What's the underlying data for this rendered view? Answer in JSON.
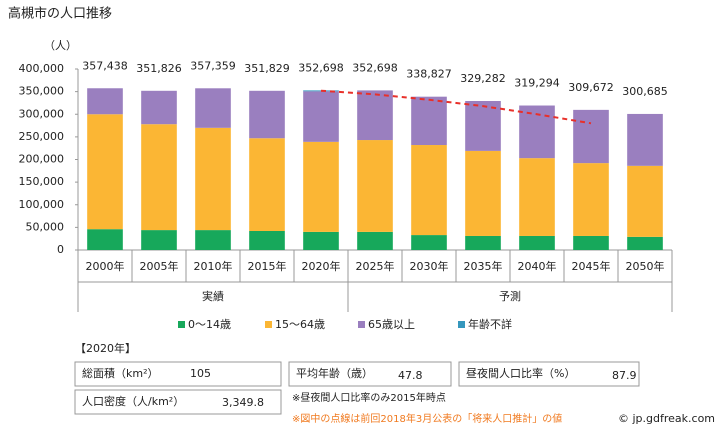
{
  "chart_data": {
    "type": "stacked-bar",
    "title": "高槻市の人口推移",
    "y_unit": "（人）",
    "categories": [
      "2000年",
      "2005年",
      "2010年",
      "2015年",
      "2020年",
      "2025年",
      "2030年",
      "2035年",
      "2040年",
      "2045年",
      "2050年"
    ],
    "groups": [
      {
        "label": "実績",
        "from": 0,
        "to": 4
      },
      {
        "label": "予測",
        "from": 5,
        "to": 10
      }
    ],
    "series": [
      {
        "name": "0～14歳",
        "color": "#17a85b",
        "values": [
          46000,
          44000,
          44000,
          42000,
          40000,
          40000,
          33000,
          31000,
          31000,
          31000,
          29000
        ]
      },
      {
        "name": "15～64歳",
        "color": "#fbb634",
        "values": [
          254000,
          234000,
          226000,
          205000,
          199000,
          203000,
          199000,
          188000,
          172000,
          161000,
          157000
        ]
      },
      {
        "name": "65歳以上",
        "color": "#9a7fbf",
        "values": [
          57438,
          73826,
          87359,
          104829,
          111698,
          109698,
          106827,
          110282,
          116294,
          117672,
          114685
        ]
      },
      {
        "name": "年齢不詳",
        "color": "#3597bd",
        "values": [
          null,
          null,
          null,
          null,
          2000,
          null,
          null,
          null,
          null,
          null,
          null
        ]
      }
    ],
    "totals": [
      357438,
      351826,
      357359,
      351829,
      352698,
      352698,
      338827,
      329282,
      319294,
      309672,
      300685
    ],
    "totals_value_labels": [
      "357,438",
      "351,826",
      "357,359",
      "351,829",
      "352,698",
      "352,698",
      "338,827",
      "329,282",
      "319,294",
      "309,672",
      "300,685"
    ],
    "previous_projection": {
      "color": "#e8302a",
      "values": [
        null,
        null,
        null,
        null,
        352000,
        344000,
        332000,
        318000,
        300000,
        280000,
        null
      ]
    },
    "ylim": [
      0,
      400000
    ],
    "yticks": [
      {
        "value": 0,
        "label": "0"
      },
      {
        "value": 50000,
        "label": "50,000"
      },
      {
        "value": 100000,
        "label": "100,000"
      },
      {
        "value": 150000,
        "label": "150,000"
      },
      {
        "value": 200000,
        "label": "200,000"
      },
      {
        "value": 250000,
        "label": "250,000"
      },
      {
        "value": 300000,
        "label": "300,000"
      },
      {
        "value": 350000,
        "label": "350,000"
      },
      {
        "value": 400000,
        "label": "400,000"
      }
    ]
  },
  "info": {
    "year": "【2020年】",
    "items": [
      {
        "label": "総面積（km²）",
        "value": 105
      },
      {
        "label": "平均年齢（歳）",
        "value": 47.8
      },
      {
        "label": "昼夜間人口比率（%）",
        "value": 87.9
      },
      {
        "label": "人口密度（人/km²）",
        "value": "3,349.8"
      }
    ],
    "notes": [
      "※昼夜間人口比率のみ2015年時点",
      "※図中の点線は前回2018年3月公表の「将来人口推計」の値"
    ],
    "copyright": "© jp.gdfreak.com"
  }
}
